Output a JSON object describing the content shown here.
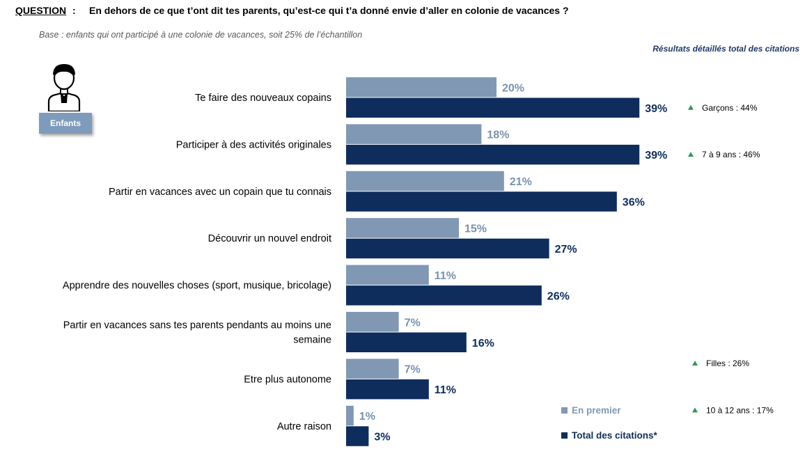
{
  "header": {
    "question_label": "QUESTION",
    "question_colon": ":",
    "question_text": "En dehors de ce que t’ont dit tes parents, qu’est-ce qui t’a donné envie d’aller en colonie de vacances ?",
    "base_text": "Base : enfants qui ont participé à une colonie de vacances, soit 25% de l’échantillon",
    "results_title": "Résultats détaillés total des citations"
  },
  "badge": {
    "label": "Enfants",
    "icon": "child-avatar-icon"
  },
  "colors": {
    "first": "#8098b4",
    "total": "#0e2d5c",
    "first_label": "#7892b0",
    "total_label": "#0e2d5c",
    "up_arrow": "#2e9a4a"
  },
  "chart_data": {
    "type": "bar",
    "orientation": "horizontal",
    "categories": [
      "Te faire des nouveaux copains",
      "Participer à des activités originales",
      "Partir en vacances avec un copain que tu connais",
      "Découvrir un nouvel endroit",
      "Apprendre des nouvelles choses (sport, musique, bricolage)",
      "Partir en vacances sans tes parents pendants au moins une semaine",
      "Etre plus autonome",
      "Autre raison"
    ],
    "category_lines": [
      [
        "Te faire des nouveaux copains"
      ],
      [
        "Participer à des activités originales"
      ],
      [
        "Partir en vacances avec un copain que tu connais"
      ],
      [
        "Découvrir un nouvel endroit"
      ],
      [
        "Apprendre des nouvelles choses (sport, musique, bricolage)"
      ],
      [
        "Partir en vacances sans tes parents pendants au moins une",
        "semaine"
      ],
      [
        "Etre plus autonome"
      ],
      [
        "Autre raison"
      ]
    ],
    "series": [
      {
        "name": "En premier",
        "values": [
          20,
          18,
          21,
          15,
          11,
          7,
          7,
          1
        ],
        "labels": [
          "20%",
          "18%",
          "21%",
          "15%",
          "11%",
          "7%",
          "7%",
          "1%"
        ]
      },
      {
        "name": "Total des citations*",
        "values": [
          39,
          39,
          36,
          27,
          26,
          16,
          11,
          3
        ],
        "labels": [
          "39%",
          "39%",
          "36%",
          "27%",
          "26%",
          "16%",
          "11%",
          "3%"
        ]
      }
    ],
    "annotations": [
      {
        "category_index": 0,
        "text": "Garçons : 44%",
        "row": "total"
      },
      {
        "category_index": 1,
        "text": "7 à 9 ans : 46%",
        "row": "total"
      },
      {
        "category_index": 5,
        "text": "Filles : 26%",
        "row": "below"
      },
      {
        "category_index": 6,
        "text": "10 à 12 ans : 17%",
        "row": "below"
      }
    ],
    "legend_placement": "bottom-right",
    "grid": false
  },
  "legend": {
    "first_label": "En premier",
    "total_label": "Total des citations*"
  }
}
